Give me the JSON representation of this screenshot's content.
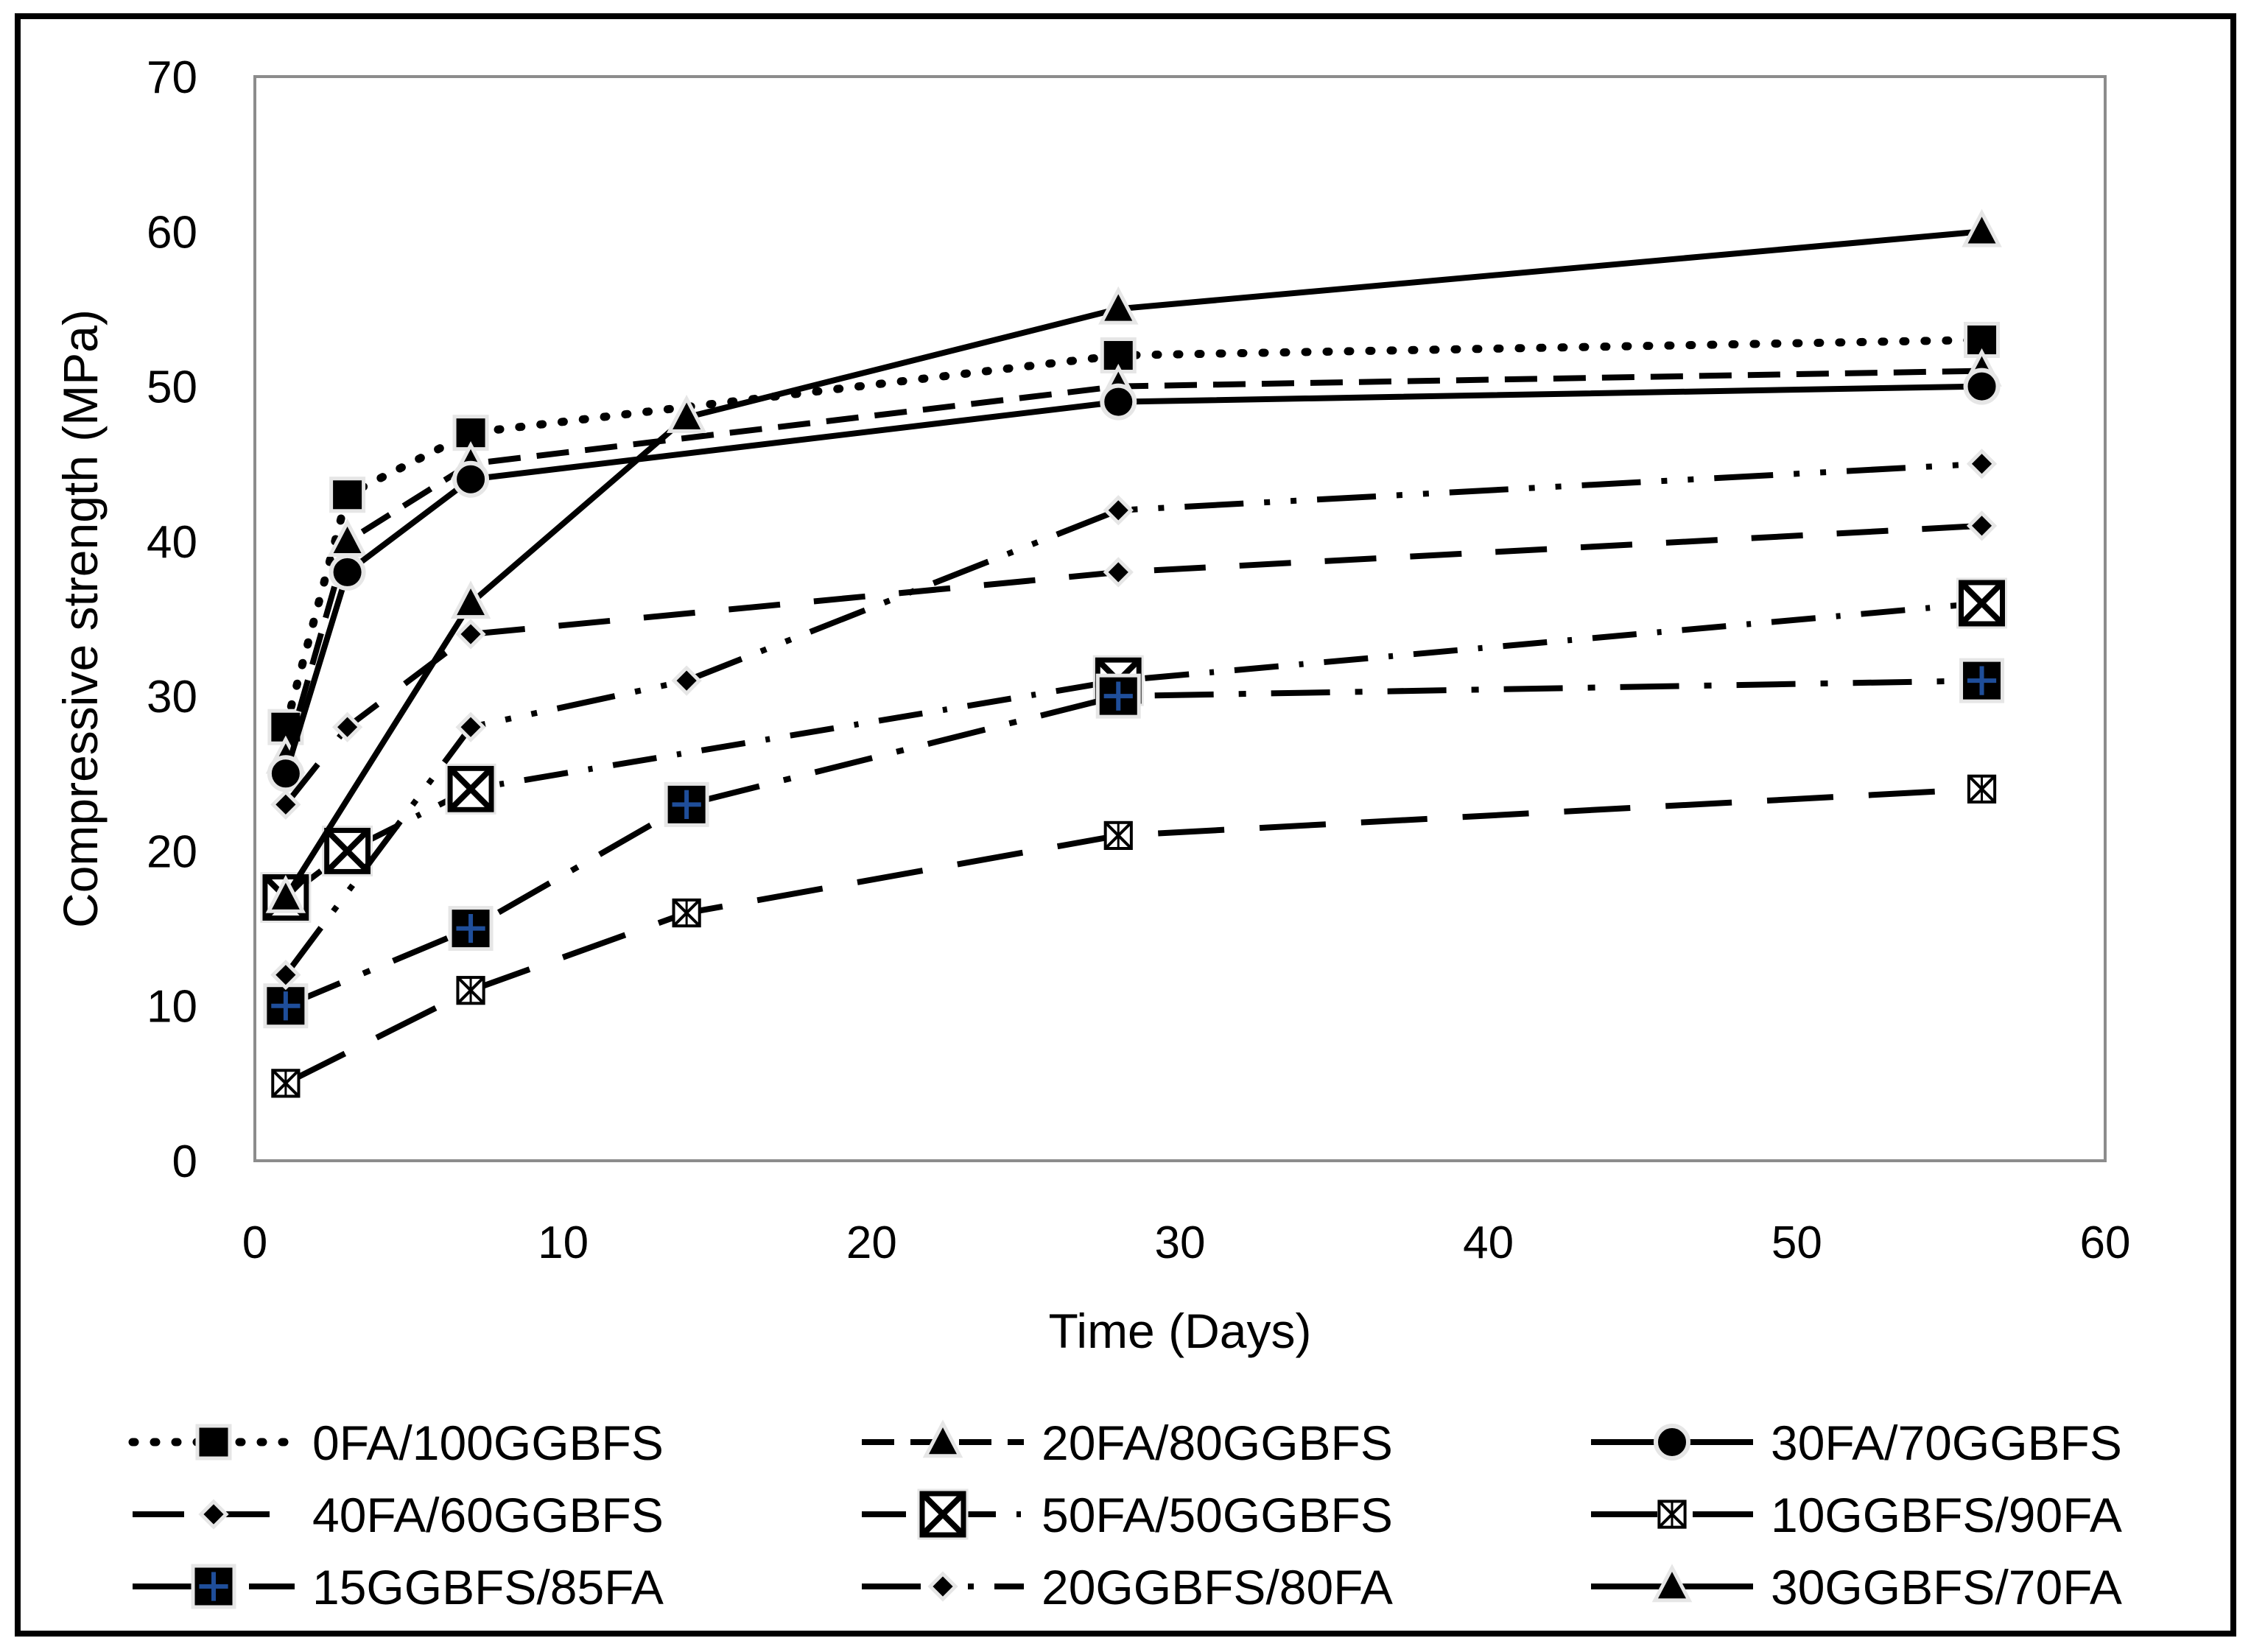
{
  "chart_data": {
    "type": "line",
    "title": "",
    "xlabel": "Time (Days)",
    "ylabel": "Compressive strength (MPa)",
    "xlim": [
      0,
      60
    ],
    "ylim": [
      0,
      70
    ],
    "x_ticks": [
      0,
      10,
      20,
      30,
      40,
      50,
      60
    ],
    "y_ticks": [
      0,
      10,
      20,
      30,
      40,
      50,
      60,
      70
    ],
    "x_tick_labels": [
      "0",
      "10",
      "20",
      "30",
      "40",
      "50",
      "60"
    ],
    "y_tick_labels": [
      "0",
      "10",
      "20",
      "30",
      "40",
      "50",
      "60",
      "70"
    ],
    "grid": false,
    "legend_position": "bottom",
    "series": [
      {
        "name": "0FA/100GGBFS",
        "dash": "dot",
        "marker": "square",
        "x": [
          1,
          3,
          7,
          28,
          56
        ],
        "values": [
          28,
          43,
          47,
          52,
          53
        ]
      },
      {
        "name": "20FA/80GGBFS",
        "dash": "dash",
        "marker": "triangle",
        "x": [
          1,
          3,
          7,
          28,
          56
        ],
        "values": [
          26,
          40,
          45,
          50,
          51
        ]
      },
      {
        "name": "30FA/70GGBFS",
        "dash": "solid",
        "marker": "circle",
        "x": [
          1,
          3,
          7,
          28,
          56
        ],
        "values": [
          25,
          38,
          44,
          49,
          50
        ]
      },
      {
        "name": "40FA/60GGBFS",
        "dash": "longdash",
        "marker": "diamond",
        "x": [
          1,
          3,
          7,
          28,
          56
        ],
        "values": [
          23,
          28,
          34,
          38,
          41
        ]
      },
      {
        "name": "50FA/50GGBFS",
        "dash": "dashdot",
        "marker": "xsquare",
        "x": [
          1,
          3,
          7,
          28,
          56
        ],
        "values": [
          17,
          20,
          24,
          31,
          36
        ]
      },
      {
        "name": "10GGBFS/90FA",
        "dash": "longdash2",
        "marker": "xsquare-small",
        "x": [
          1,
          7,
          14,
          28,
          56
        ],
        "values": [
          5,
          11,
          16,
          21,
          24
        ]
      },
      {
        "name": "15GGBFS/85FA",
        "dash": "longdashdot",
        "marker": "plus-square",
        "x": [
          1,
          7,
          14,
          28,
          56
        ],
        "values": [
          10,
          15,
          23,
          30,
          31
        ]
      },
      {
        "name": "20GGBFS/80FA",
        "dash": "longdashdotdot",
        "marker": "diamond",
        "x": [
          1,
          7,
          14,
          28,
          56
        ],
        "values": [
          12,
          28,
          31,
          42,
          45
        ]
      },
      {
        "name": "30GGBFS/70FA",
        "dash": "solid",
        "marker": "triangle",
        "x": [
          1,
          7,
          14,
          28,
          56
        ],
        "values": [
          17,
          36,
          48,
          55,
          60
        ]
      }
    ]
  },
  "colors": {
    "line": "#000000",
    "marker_fill": "#000000",
    "marker_edge": "#e6e6e6",
    "plus": "#1f4e9a"
  }
}
